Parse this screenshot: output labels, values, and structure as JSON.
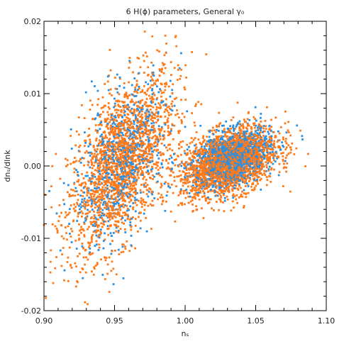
{
  "chart_data": {
    "type": "scatter",
    "title": "6 H(ϕ) parameters, General γ₀",
    "xlabel": "nₛ",
    "ylabel": "dnₛ/dlnk",
    "xlim": [
      0.9,
      1.1
    ],
    "ylim": [
      -0.02,
      0.02
    ],
    "xticks": [
      "0.90",
      "0.95",
      "1.00",
      "1.05",
      "1.10"
    ],
    "yticks": [
      "-0.02",
      "-0.01",
      "0.00",
      "0.01",
      "0.02"
    ],
    "grid": false,
    "legend": "none",
    "series": [
      {
        "color": "#ff7a1a",
        "clusters": [
          {
            "n": 1900,
            "x_mean": 0.955,
            "x_sd": 0.019,
            "y_mean": 0.0005,
            "y_sd": 0.0052,
            "slope": 0.18
          },
          {
            "n": 2100,
            "x_mean": 1.031,
            "x_sd": 0.017,
            "y_mean": 0.0005,
            "y_sd": 0.0022,
            "slope": 0.06
          }
        ]
      },
      {
        "color": "#2b8fe0",
        "clusters": [
          {
            "n": 700,
            "x_mean": 0.955,
            "x_sd": 0.017,
            "y_mean": 0.0005,
            "y_sd": 0.0048,
            "slope": 0.16
          },
          {
            "n": 1200,
            "x_mean": 1.033,
            "x_sd": 0.014,
            "y_mean": 0.001,
            "y_sd": 0.0019,
            "slope": 0.05
          }
        ]
      }
    ]
  }
}
